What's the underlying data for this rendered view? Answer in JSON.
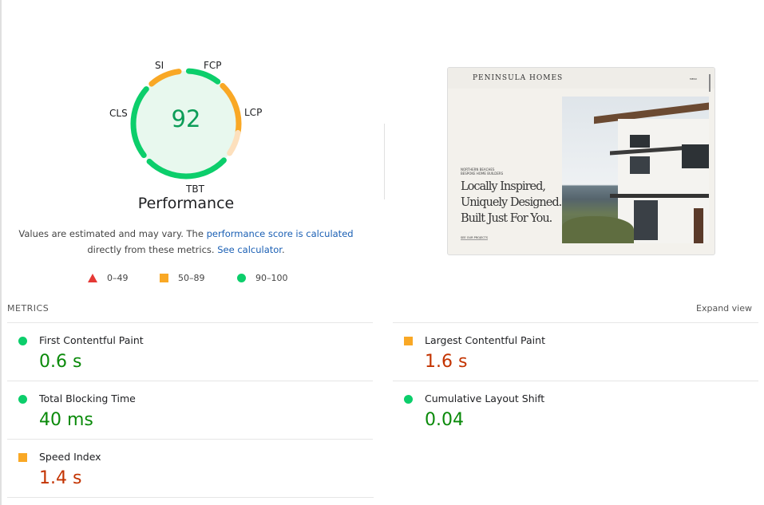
{
  "gauge": {
    "score": "92",
    "title": "Performance",
    "labels": {
      "si": "SI",
      "fcp": "FCP",
      "lcp": "LCP",
      "tbt": "TBT",
      "cls": "CLS"
    }
  },
  "description": {
    "text1": "Values are estimated and may vary. The ",
    "link1": "performance score is calculated",
    "text2": "directly from these metrics. ",
    "link2": "See calculator",
    "text3": "."
  },
  "legend": [
    {
      "label": "0–49",
      "icon": "triangle"
    },
    {
      "label": "50–89",
      "icon": "square"
    },
    {
      "label": "90–100",
      "icon": "circle"
    }
  ],
  "screenshot": {
    "brand": "PENINSULA HOMES",
    "menu": "MENU",
    "eyebrow1": "NORTHERN BEACHES",
    "eyebrow2": "BESPOKE HOME BUILDERS",
    "headline1": "Locally Inspired,",
    "headline2": "Uniquely Designed.",
    "headline3": "Built Just For You.",
    "cta": "SEE OUR PROJECTS"
  },
  "metrics": {
    "heading": "METRICS",
    "expand": "Expand view",
    "items": [
      {
        "label": "First Contentful Paint",
        "value": "0.6 s",
        "rating": "good"
      },
      {
        "label": "Largest Contentful Paint",
        "value": "1.6 s",
        "rating": "average"
      },
      {
        "label": "Total Blocking Time",
        "value": "40 ms",
        "rating": "good"
      },
      {
        "label": "Cumulative Layout Shift",
        "value": "0.04",
        "rating": "good"
      },
      {
        "label": "Speed Index",
        "value": "1.4 s",
        "rating": "average"
      }
    ]
  },
  "colors": {
    "good": "#0cce6b",
    "average": "#f9a825",
    "poor": "#e53935",
    "good_text": "#0a8a0a",
    "average_text": "#c33300"
  }
}
